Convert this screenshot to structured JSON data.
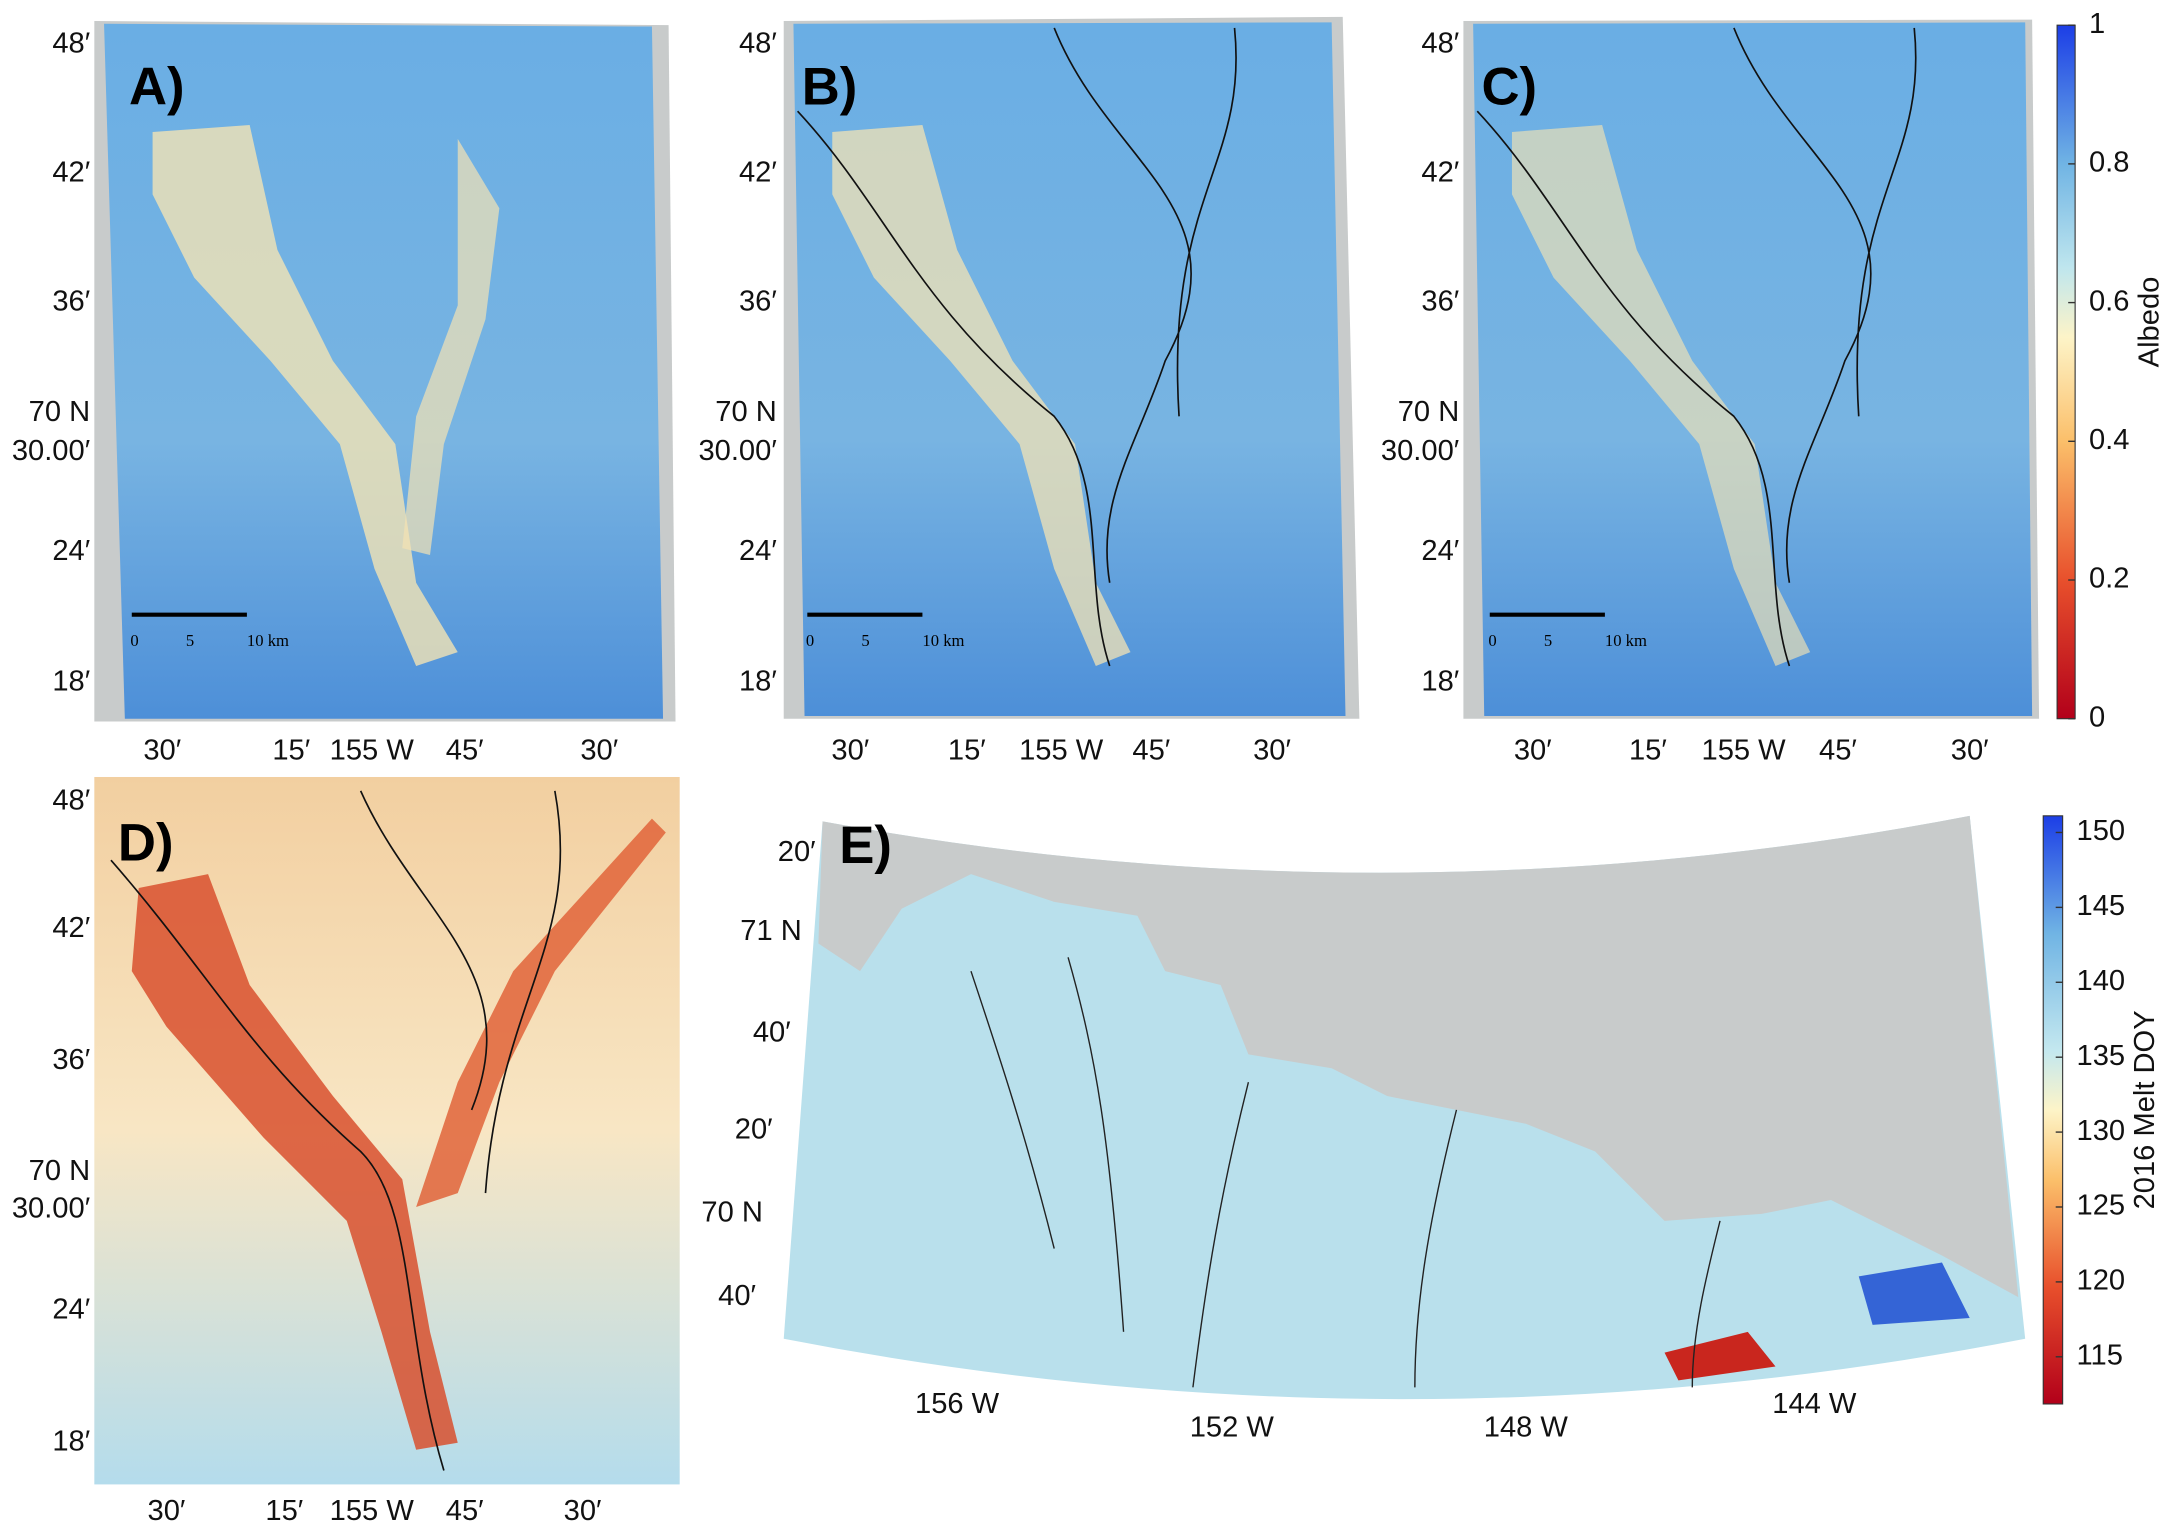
{
  "panels": [
    {
      "label": "A)",
      "lat_labels": [
        "48′",
        "42′",
        "36′",
        "70 N",
        "30.00′",
        "24′",
        "18′"
      ],
      "lon_labels": [
        "30′",
        "15′",
        "155 W",
        "45′",
        "30′"
      ],
      "scale_bar": [
        "0",
        "5",
        "10 km"
      ]
    },
    {
      "label": "B)",
      "lat_labels": [
        "48′",
        "42′",
        "36′",
        "70 N",
        "30.00′",
        "24′",
        "18′"
      ],
      "lon_labels": [
        "30′",
        "15′",
        "155 W",
        "45′",
        "30′"
      ],
      "scale_bar": [
        "0",
        "5",
        "10 km"
      ]
    },
    {
      "label": "C)",
      "lat_labels": [
        "48′",
        "42′",
        "36′",
        "70 N",
        "30.00′",
        "24′",
        "18′"
      ],
      "lon_labels": [
        "30′",
        "15′",
        "155 W",
        "45′",
        "30′"
      ],
      "scale_bar": [
        "0",
        "5",
        "10 km"
      ]
    },
    {
      "label": "D)",
      "lat_labels": [
        "48′",
        "42′",
        "36′",
        "70 N",
        "30.00′",
        "24′",
        "18′"
      ],
      "lon_labels": [
        "30′",
        "15′",
        "155 W",
        "45′",
        "30′"
      ]
    },
    {
      "label": "E)",
      "lat_labels": [
        "20′",
        "71 N",
        "40′",
        "20′",
        "70 N",
        "40′"
      ],
      "lon_labels": [
        "156 W",
        "152 W",
        "148 W",
        "144 W"
      ]
    }
  ],
  "colorbars": [
    {
      "label": "Albedo",
      "ticks": [
        0,
        0.2,
        0.4,
        0.6,
        0.8,
        1
      ]
    },
    {
      "label": "2016 Melt DOY",
      "ticks": [
        115,
        120,
        125,
        130,
        135,
        140,
        145,
        150
      ]
    }
  ]
}
